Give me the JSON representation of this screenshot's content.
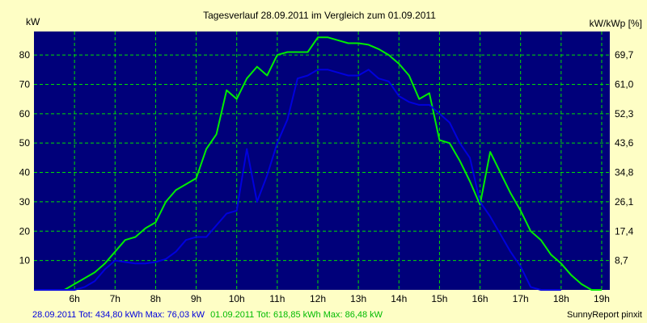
{
  "chart_data": {
    "type": "line",
    "title": "Tagesverlauf 28.09.2011 im Vergleich zum 01.09.2011",
    "ylabel_left": "kW",
    "ylabel_right": "kW/kWp [%]",
    "x_ticks": [
      "6h",
      "7h",
      "8h",
      "9h",
      "10h",
      "11h",
      "12h",
      "13h",
      "14h",
      "15h",
      "16h",
      "17h",
      "18h",
      "19h"
    ],
    "y_ticks_left": [
      "10",
      "20",
      "30",
      "40",
      "50",
      "60",
      "70",
      "80"
    ],
    "y_ticks_right": [
      "8,7",
      "17,4",
      "26,1",
      "34,8",
      "43,6",
      "52,3",
      "61,0",
      "69,7"
    ],
    "xlim": [
      5.0,
      19.2
    ],
    "ylim": [
      0,
      88
    ],
    "grid": true,
    "series": [
      {
        "name": "28.09.2011",
        "color": "#0000dd",
        "points": [
          [
            5.0,
            0
          ],
          [
            5.75,
            0
          ],
          [
            6.0,
            0
          ],
          [
            6.25,
            1
          ],
          [
            6.5,
            3
          ],
          [
            6.75,
            7
          ],
          [
            7.0,
            10
          ],
          [
            7.25,
            9.5
          ],
          [
            7.5,
            9
          ],
          [
            7.75,
            9
          ],
          [
            8.0,
            9.5
          ],
          [
            8.25,
            10.5
          ],
          [
            8.5,
            13
          ],
          [
            8.75,
            17
          ],
          [
            9.0,
            18
          ],
          [
            9.25,
            18
          ],
          [
            9.5,
            22
          ],
          [
            9.75,
            26
          ],
          [
            10.0,
            27
          ],
          [
            10.25,
            48
          ],
          [
            10.5,
            30
          ],
          [
            10.75,
            39
          ],
          [
            11.0,
            50
          ],
          [
            11.25,
            58
          ],
          [
            11.5,
            72
          ],
          [
            11.75,
            73
          ],
          [
            12.0,
            75
          ],
          [
            12.25,
            75
          ],
          [
            12.5,
            74
          ],
          [
            12.75,
            73
          ],
          [
            13.0,
            73
          ],
          [
            13.25,
            75
          ],
          [
            13.5,
            72
          ],
          [
            13.75,
            71
          ],
          [
            14.0,
            66
          ],
          [
            14.25,
            64
          ],
          [
            14.5,
            63
          ],
          [
            14.75,
            63
          ],
          [
            15.0,
            60
          ],
          [
            15.25,
            57
          ],
          [
            15.5,
            50
          ],
          [
            15.75,
            45
          ],
          [
            16.0,
            30
          ],
          [
            16.25,
            25
          ],
          [
            16.5,
            19
          ],
          [
            16.75,
            13
          ],
          [
            17.0,
            8
          ],
          [
            17.25,
            1
          ],
          [
            17.5,
            0
          ],
          [
            17.75,
            0
          ],
          [
            18.0,
            0
          ]
        ]
      },
      {
        "name": "01.09.2011",
        "color": "#00ee00",
        "points": [
          [
            5.0,
            0
          ],
          [
            5.75,
            0
          ],
          [
            6.0,
            2
          ],
          [
            6.25,
            4
          ],
          [
            6.5,
            6
          ],
          [
            6.75,
            9
          ],
          [
            7.0,
            13
          ],
          [
            7.25,
            17
          ],
          [
            7.5,
            18
          ],
          [
            7.75,
            21
          ],
          [
            8.0,
            23
          ],
          [
            8.25,
            30
          ],
          [
            8.5,
            34
          ],
          [
            8.75,
            36
          ],
          [
            9.0,
            38
          ],
          [
            9.25,
            48
          ],
          [
            9.5,
            53
          ],
          [
            9.75,
            68
          ],
          [
            10.0,
            65
          ],
          [
            10.25,
            72
          ],
          [
            10.5,
            76
          ],
          [
            10.75,
            73
          ],
          [
            11.0,
            80
          ],
          [
            11.25,
            81
          ],
          [
            11.5,
            81
          ],
          [
            11.75,
            81
          ],
          [
            12.0,
            86
          ],
          [
            12.25,
            86
          ],
          [
            12.5,
            85
          ],
          [
            12.75,
            84
          ],
          [
            13.0,
            84
          ],
          [
            13.25,
            83.5
          ],
          [
            13.5,
            82
          ],
          [
            13.75,
            80
          ],
          [
            14.0,
            77
          ],
          [
            14.25,
            73
          ],
          [
            14.5,
            65
          ],
          [
            14.75,
            67
          ],
          [
            15.0,
            51
          ],
          [
            15.25,
            50
          ],
          [
            15.5,
            44
          ],
          [
            15.75,
            37
          ],
          [
            16.0,
            29
          ],
          [
            16.25,
            47
          ],
          [
            16.5,
            40
          ],
          [
            16.75,
            33
          ],
          [
            17.0,
            27
          ],
          [
            17.25,
            20
          ],
          [
            17.5,
            17
          ],
          [
            17.75,
            12
          ],
          [
            18.0,
            9
          ],
          [
            18.25,
            5
          ],
          [
            18.5,
            2
          ],
          [
            18.75,
            0
          ],
          [
            19.0,
            0
          ]
        ]
      }
    ]
  },
  "footer": {
    "left_blue": "28.09.2011 Tot: 434,80 kWh Max: 76,03 kW",
    "left_green": "01.09.2011 Tot: 618,85 kWh Max: 86,48 kW",
    "right": "SunnyReport pinxit"
  },
  "colors": {
    "background": "#fefec5",
    "plot": "#00007a",
    "grid": "#00e000"
  }
}
